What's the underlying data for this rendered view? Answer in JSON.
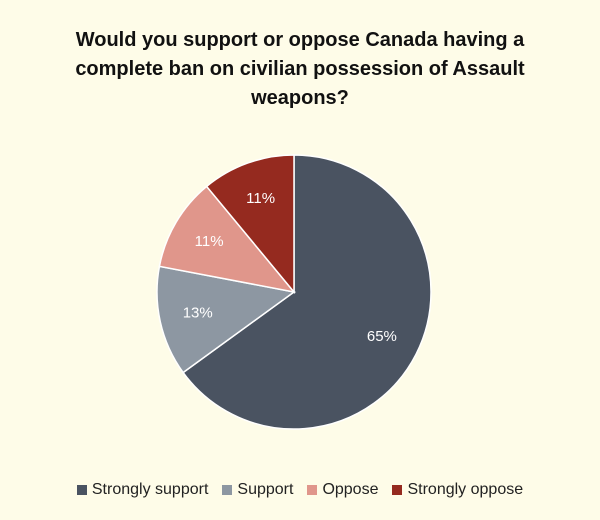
{
  "chart_data": {
    "type": "pie",
    "title": "Would you support or oppose Canada having a complete ban on civilian possession of Assault weapons?",
    "categories": [
      "Strongly support",
      "Support",
      "Oppose",
      "Strongly oppose"
    ],
    "values": [
      65,
      13,
      11,
      11
    ],
    "value_labels": [
      "65%",
      "13%",
      "11%",
      "11%"
    ],
    "colors": [
      "#4a5361",
      "#8d97a2",
      "#e0968b",
      "#952a1f"
    ],
    "legend": "bottom"
  }
}
